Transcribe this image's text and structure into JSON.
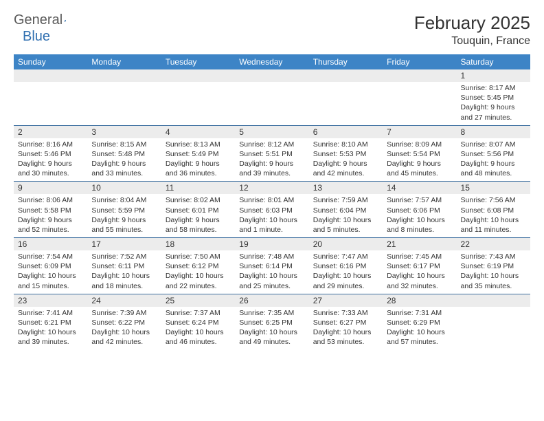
{
  "logo": {
    "general": "General",
    "blue": "Blue"
  },
  "title": "February 2025",
  "location": "Touquin, France",
  "colors": {
    "header_bg": "#3d84c6",
    "header_text": "#ffffff",
    "daynum_bg": "#ececec",
    "row_border": "#3d6fa0",
    "text": "#333333",
    "logo_gray": "#5a5a5a",
    "logo_blue": "#2f6fb0"
  },
  "weekdays": [
    "Sunday",
    "Monday",
    "Tuesday",
    "Wednesday",
    "Thursday",
    "Friday",
    "Saturday"
  ],
  "weeks": [
    [
      null,
      null,
      null,
      null,
      null,
      null,
      {
        "n": "1",
        "sr": "8:17 AM",
        "ss": "5:45 PM",
        "dl": "9 hours and 27 minutes."
      }
    ],
    [
      {
        "n": "2",
        "sr": "8:16 AM",
        "ss": "5:46 PM",
        "dl": "9 hours and 30 minutes."
      },
      {
        "n": "3",
        "sr": "8:15 AM",
        "ss": "5:48 PM",
        "dl": "9 hours and 33 minutes."
      },
      {
        "n": "4",
        "sr": "8:13 AM",
        "ss": "5:49 PM",
        "dl": "9 hours and 36 minutes."
      },
      {
        "n": "5",
        "sr": "8:12 AM",
        "ss": "5:51 PM",
        "dl": "9 hours and 39 minutes."
      },
      {
        "n": "6",
        "sr": "8:10 AM",
        "ss": "5:53 PM",
        "dl": "9 hours and 42 minutes."
      },
      {
        "n": "7",
        "sr": "8:09 AM",
        "ss": "5:54 PM",
        "dl": "9 hours and 45 minutes."
      },
      {
        "n": "8",
        "sr": "8:07 AM",
        "ss": "5:56 PM",
        "dl": "9 hours and 48 minutes."
      }
    ],
    [
      {
        "n": "9",
        "sr": "8:06 AM",
        "ss": "5:58 PM",
        "dl": "9 hours and 52 minutes."
      },
      {
        "n": "10",
        "sr": "8:04 AM",
        "ss": "5:59 PM",
        "dl": "9 hours and 55 minutes."
      },
      {
        "n": "11",
        "sr": "8:02 AM",
        "ss": "6:01 PM",
        "dl": "9 hours and 58 minutes."
      },
      {
        "n": "12",
        "sr": "8:01 AM",
        "ss": "6:03 PM",
        "dl": "10 hours and 1 minute."
      },
      {
        "n": "13",
        "sr": "7:59 AM",
        "ss": "6:04 PM",
        "dl": "10 hours and 5 minutes."
      },
      {
        "n": "14",
        "sr": "7:57 AM",
        "ss": "6:06 PM",
        "dl": "10 hours and 8 minutes."
      },
      {
        "n": "15",
        "sr": "7:56 AM",
        "ss": "6:08 PM",
        "dl": "10 hours and 11 minutes."
      }
    ],
    [
      {
        "n": "16",
        "sr": "7:54 AM",
        "ss": "6:09 PM",
        "dl": "10 hours and 15 minutes."
      },
      {
        "n": "17",
        "sr": "7:52 AM",
        "ss": "6:11 PM",
        "dl": "10 hours and 18 minutes."
      },
      {
        "n": "18",
        "sr": "7:50 AM",
        "ss": "6:12 PM",
        "dl": "10 hours and 22 minutes."
      },
      {
        "n": "19",
        "sr": "7:48 AM",
        "ss": "6:14 PM",
        "dl": "10 hours and 25 minutes."
      },
      {
        "n": "20",
        "sr": "7:47 AM",
        "ss": "6:16 PM",
        "dl": "10 hours and 29 minutes."
      },
      {
        "n": "21",
        "sr": "7:45 AM",
        "ss": "6:17 PM",
        "dl": "10 hours and 32 minutes."
      },
      {
        "n": "22",
        "sr": "7:43 AM",
        "ss": "6:19 PM",
        "dl": "10 hours and 35 minutes."
      }
    ],
    [
      {
        "n": "23",
        "sr": "7:41 AM",
        "ss": "6:21 PM",
        "dl": "10 hours and 39 minutes."
      },
      {
        "n": "24",
        "sr": "7:39 AM",
        "ss": "6:22 PM",
        "dl": "10 hours and 42 minutes."
      },
      {
        "n": "25",
        "sr": "7:37 AM",
        "ss": "6:24 PM",
        "dl": "10 hours and 46 minutes."
      },
      {
        "n": "26",
        "sr": "7:35 AM",
        "ss": "6:25 PM",
        "dl": "10 hours and 49 minutes."
      },
      {
        "n": "27",
        "sr": "7:33 AM",
        "ss": "6:27 PM",
        "dl": "10 hours and 53 minutes."
      },
      {
        "n": "28",
        "sr": "7:31 AM",
        "ss": "6:29 PM",
        "dl": "10 hours and 57 minutes."
      },
      null
    ]
  ],
  "labels": {
    "sunrise": "Sunrise:",
    "sunset": "Sunset:",
    "daylight": "Daylight:"
  }
}
